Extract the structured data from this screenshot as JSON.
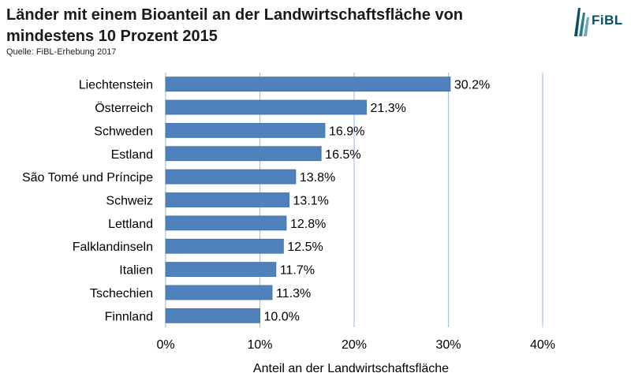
{
  "header": {
    "title": "Länder mit einem Bioanteil  an der Landwirtschaftsfläche von mindestens 10 Prozent 2015",
    "source": "Quelle: FiBL-Erhebung 2017",
    "logo_text": "FiBL"
  },
  "colors": {
    "bar": "#4f81bd",
    "bar_stroke": "#3f6ea6",
    "grid": "#a8c0de",
    "logo": "#0a4f63"
  },
  "chart_data": {
    "type": "bar",
    "orientation": "horizontal",
    "categories": [
      "Liechtenstein",
      "Österreich",
      "Schweden",
      "Estland",
      "São Tomé und Príncipe",
      "Schweiz",
      "Lettland",
      "Falklandinseln",
      "Italien",
      "Tschechien",
      "Finnland"
    ],
    "values": [
      30.2,
      21.3,
      16.9,
      16.5,
      13.8,
      13.1,
      12.8,
      12.5,
      11.7,
      11.3,
      10.0
    ],
    "value_labels": [
      "30.2%",
      "21.3%",
      "16.9%",
      "16.5%",
      "13.8%",
      "13.1%",
      "12.8%",
      "12.5%",
      "11.7%",
      "11.3%",
      "10.0%"
    ],
    "xlim": [
      0,
      40
    ],
    "xticks": [
      0,
      10,
      20,
      30,
      40
    ],
    "xtick_labels": [
      "0%",
      "10%",
      "20%",
      "30%",
      "40%"
    ],
    "xlabel": "Anteil an der Landwirtschaftsfläche",
    "ylabel": "",
    "grid": "vertical",
    "legend": "none"
  }
}
